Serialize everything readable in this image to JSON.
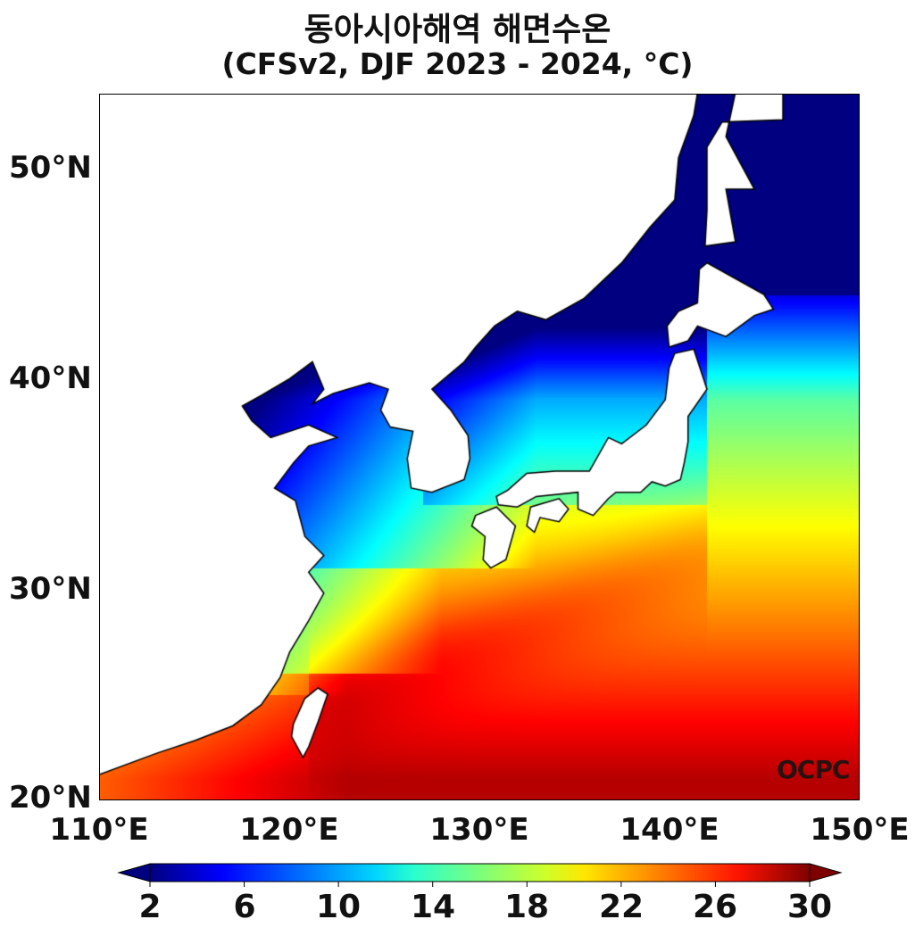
{
  "title": {
    "line1": "동아시아해역 해면수온",
    "line2": "(CFSv2, DJF 2023 - 2024, °C)"
  },
  "map": {
    "lon_range": [
      110,
      150
    ],
    "lat_range": [
      20,
      53.5
    ],
    "lat_ticks": [
      {
        "value": 50,
        "label": "50°N"
      },
      {
        "value": 40,
        "label": "40°N"
      },
      {
        "value": 30,
        "label": "30°N"
      },
      {
        "value": 20,
        "label": "20°N"
      }
    ],
    "lon_ticks": [
      {
        "value": 110,
        "label": "110°E"
      },
      {
        "value": 120,
        "label": "120°E"
      },
      {
        "value": 130,
        "label": "130°E"
      },
      {
        "value": 140,
        "label": "140°E"
      },
      {
        "value": 150,
        "label": "150°E"
      }
    ],
    "land_color": "#ffffff",
    "coastline_color": "#000000"
  },
  "colorbar": {
    "colormap": "jet",
    "range": [
      2,
      30
    ],
    "extend": "both",
    "ticks": [
      "2",
      "6",
      "10",
      "14",
      "18",
      "22",
      "26",
      "30"
    ]
  },
  "logo": {
    "text": "OCPC"
  }
}
